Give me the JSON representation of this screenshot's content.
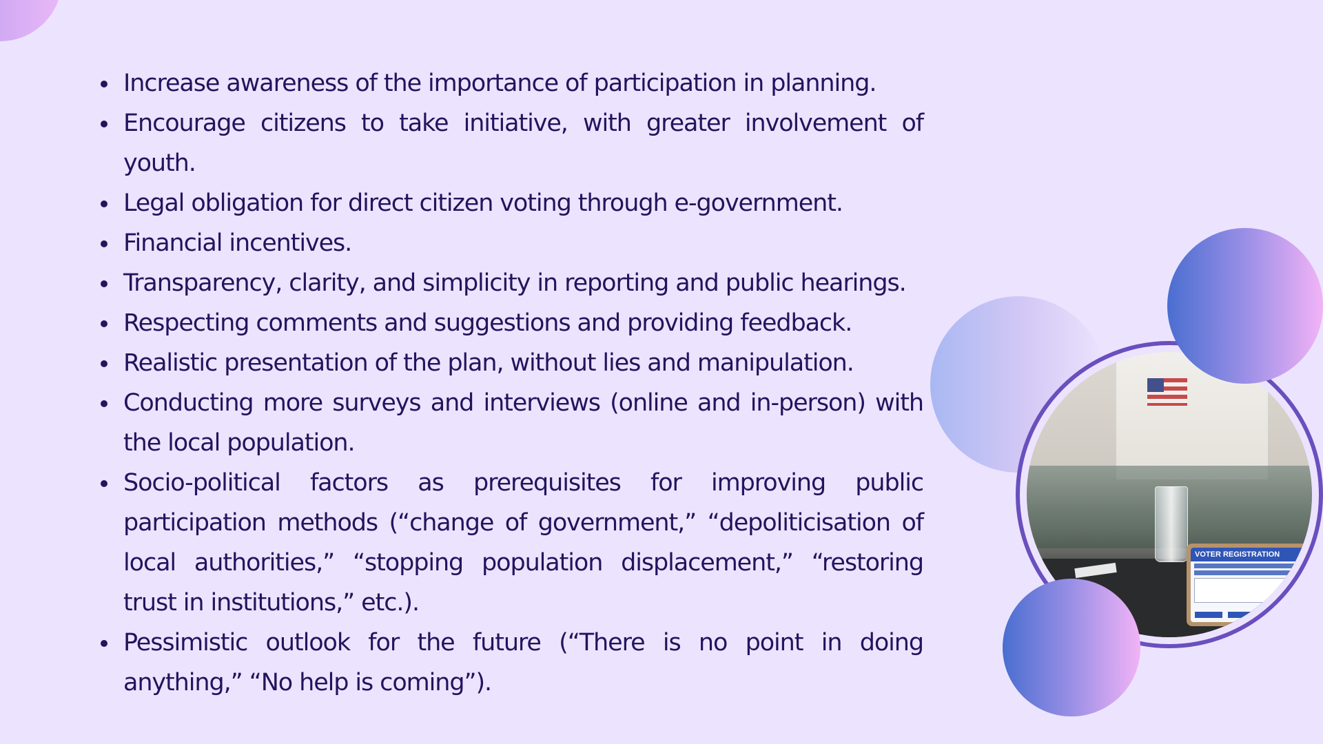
{
  "bullets": [
    "Increase awareness of the importance of participation in planning.",
    "Encourage citizens to take initiative, with greater involvement of youth.",
    "Legal obligation for direct citizen voting through e-government.",
    "Financial incentives.",
    "Transparency, clarity, and simplicity in reporting and public hearings.",
    "Respecting comments and suggestions and providing feedback.",
    "Realistic presentation of the plan, without lies and manipulation.",
    "Conducting more surveys and interviews (online and in-person) with the local population.",
    "Socio-political factors as prerequisites for improving public participation methods (“change of government,” “depoliticisation of local authorities,” “stopping population displacement,” “restoring trust in institutions,” etc.).",
    " Pessimistic outlook for the future (“There is no point in doing anything,” “No help is coming”)."
  ],
  "photo": {
    "tablet_title": "VOTER REGISTRATION"
  },
  "colors": {
    "background": "#ece4fe",
    "text": "#22145d",
    "ring": "#6a4fbe",
    "gradient_start": "#4a6ed0",
    "gradient_end": "#f2b3f6"
  }
}
